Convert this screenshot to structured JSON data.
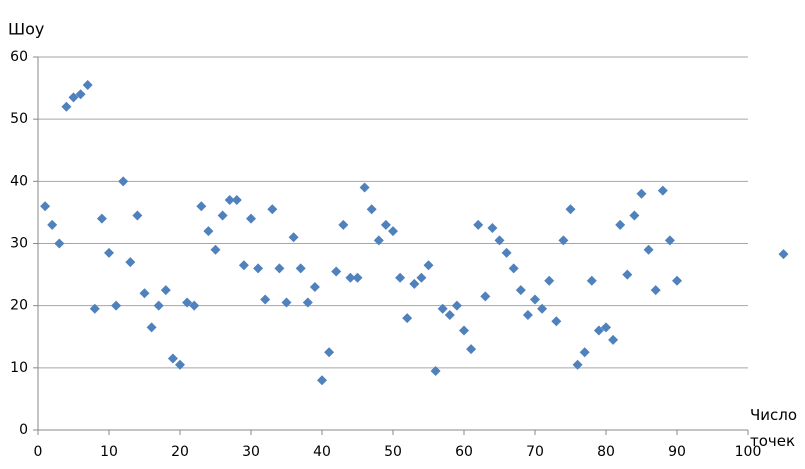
{
  "chart_data": {
    "type": "scatter",
    "y_label": "Шоу",
    "x_label": "Число точек",
    "xlim": [
      0,
      100
    ],
    "xticks": [
      0,
      10,
      20,
      30,
      40,
      50,
      60,
      70,
      80,
      90,
      100
    ],
    "ylim": [
      0,
      60
    ],
    "yticks": [
      0,
      10,
      20,
      30,
      40,
      50,
      60
    ],
    "grid": true,
    "series": [
      {
        "color": "#4f81bd",
        "x": [
          1,
          2,
          3,
          4,
          5,
          6,
          7,
          8,
          9,
          10,
          11,
          12,
          13,
          14,
          15,
          16,
          17,
          18,
          19,
          20,
          21,
          22,
          23,
          24,
          25,
          26,
          27,
          28,
          29,
          30,
          31,
          32,
          33,
          34,
          35,
          36,
          37,
          38,
          39,
          40,
          41,
          42,
          43,
          44,
          45,
          46,
          47,
          48,
          49,
          50,
          51,
          52,
          53,
          54,
          55,
          56,
          57,
          58,
          59,
          60,
          61,
          62,
          63,
          64,
          65,
          66,
          67,
          68,
          69,
          70,
          71,
          72,
          73,
          74,
          75,
          76,
          77,
          78,
          79,
          80,
          81,
          82,
          83,
          84,
          85,
          86,
          87,
          88,
          89,
          90,
          105
        ],
        "values": [
          36,
          33,
          30,
          52,
          53.5,
          54,
          55.5,
          19.5,
          34,
          28.5,
          20,
          40,
          27,
          34.5,
          22,
          16.5,
          20,
          22.5,
          11.5,
          10.5,
          20.5,
          20,
          36,
          32,
          29,
          34.5,
          37,
          37,
          26.5,
          34,
          26,
          21,
          35.5,
          26,
          20.5,
          31,
          26,
          20.5,
          23,
          8,
          12.5,
          25.5,
          33,
          24.5,
          24.5,
          39,
          35.5,
          30.5,
          33,
          32,
          24.5,
          18,
          23.5,
          24.5,
          26.5,
          9.5,
          19.5,
          18.5,
          20,
          16,
          13,
          33,
          21.5,
          32.5,
          30.5,
          28.5,
          26,
          22.5,
          18.5,
          21,
          19.5,
          24,
          17.5,
          30.5,
          35.5,
          10.5,
          12.5,
          24,
          16,
          16.5,
          14.5,
          33,
          25,
          34.5,
          38,
          29,
          22.5,
          38.5,
          30.5,
          24,
          28.3
        ]
      }
    ]
  }
}
